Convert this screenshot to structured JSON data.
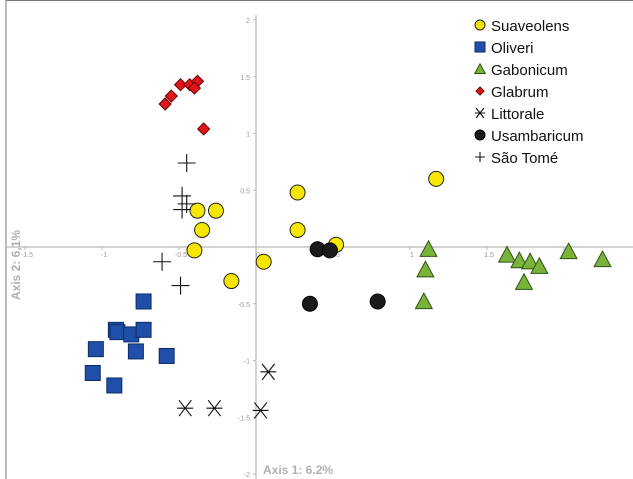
{
  "chart_data": {
    "type": "scatter",
    "title": "",
    "xlabel": "Axis 1: 6.2%",
    "ylabel": "Axis 2: 6,1%",
    "xlim": [
      -1.6,
      2.5
    ],
    "ylim": [
      -2,
      2
    ],
    "x_ticks": [
      "-1.5",
      "-1",
      "-0.5",
      "0",
      "0.5",
      "1",
      "1.5",
      "2",
      "2.5"
    ],
    "y_ticks": [
      "2",
      "1.5",
      "1",
      "0.5",
      "0",
      "-0.5",
      "-1",
      "-1.5",
      "-2"
    ],
    "grid": false,
    "legend_position": "top-right",
    "series": [
      {
        "name": "Suaveolens",
        "marker": "circle",
        "color": "#f6e600",
        "stroke": "#222222",
        "points": [
          [
            -0.38,
            0.32
          ],
          [
            -0.26,
            0.32
          ],
          [
            -0.35,
            0.15
          ],
          [
            -0.4,
            -0.03
          ],
          [
            -0.16,
            -0.3
          ],
          [
            0.27,
            0.48
          ],
          [
            0.27,
            0.15
          ],
          [
            0.05,
            -0.13
          ],
          [
            0.52,
            0.02
          ],
          [
            1.17,
            0.6
          ]
        ]
      },
      {
        "name": "Oliveri",
        "marker": "square",
        "color": "#1f4fa8",
        "stroke": "#0d2c66",
        "points": [
          [
            -0.73,
            -0.48
          ],
          [
            -0.91,
            -0.73
          ],
          [
            -0.9,
            -0.75
          ],
          [
            -0.81,
            -0.77
          ],
          [
            -0.73,
            -0.73
          ],
          [
            -1.04,
            -0.9
          ],
          [
            -0.78,
            -0.92
          ],
          [
            -0.58,
            -0.96
          ],
          [
            -1.06,
            -1.11
          ],
          [
            -0.92,
            -1.22
          ]
        ]
      },
      {
        "name": "Gabonicum",
        "marker": "triangle",
        "color": "#79b33a",
        "stroke": "#2f5212",
        "points": [
          [
            1.12,
            -0.02
          ],
          [
            1.1,
            -0.2
          ],
          [
            1.09,
            -0.48
          ],
          [
            1.63,
            -0.07
          ],
          [
            1.71,
            -0.12
          ],
          [
            1.78,
            -0.13
          ],
          [
            1.84,
            -0.17
          ],
          [
            1.74,
            -0.31
          ],
          [
            2.03,
            -0.04
          ],
          [
            2.25,
            -0.11
          ]
        ]
      },
      {
        "name": "Glabrum",
        "marker": "diamond",
        "color": "#e0151b",
        "stroke": "#6b0000",
        "points": [
          [
            -0.49,
            1.43
          ],
          [
            -0.55,
            1.33
          ],
          [
            -0.59,
            1.26
          ],
          [
            -0.43,
            1.43
          ],
          [
            -0.38,
            1.46
          ],
          [
            -0.4,
            1.4
          ],
          [
            -0.34,
            1.04
          ]
        ]
      },
      {
        "name": "Littorale",
        "marker": "asterisk",
        "color": "#111111",
        "stroke": "#111111",
        "points": [
          [
            0.08,
            -1.1
          ],
          [
            -0.46,
            -1.42
          ],
          [
            -0.27,
            -1.42
          ],
          [
            0.03,
            -1.44
          ]
        ]
      },
      {
        "name": "Usambaricum",
        "marker": "circle",
        "color": "#1a1a1a",
        "stroke": "#000000",
        "points": [
          [
            0.4,
            -0.02
          ],
          [
            0.48,
            -0.03
          ],
          [
            0.35,
            -0.5
          ],
          [
            0.79,
            -0.48
          ]
        ]
      },
      {
        "name": "São Tomé",
        "marker": "plus",
        "color": "#111111",
        "stroke": "#111111",
        "points": [
          [
            -0.45,
            0.74
          ],
          [
            -0.48,
            0.45
          ],
          [
            -0.48,
            0.33
          ],
          [
            -0.45,
            0.38
          ],
          [
            -0.61,
            -0.13
          ],
          [
            -0.49,
            -0.34
          ]
        ]
      }
    ]
  }
}
